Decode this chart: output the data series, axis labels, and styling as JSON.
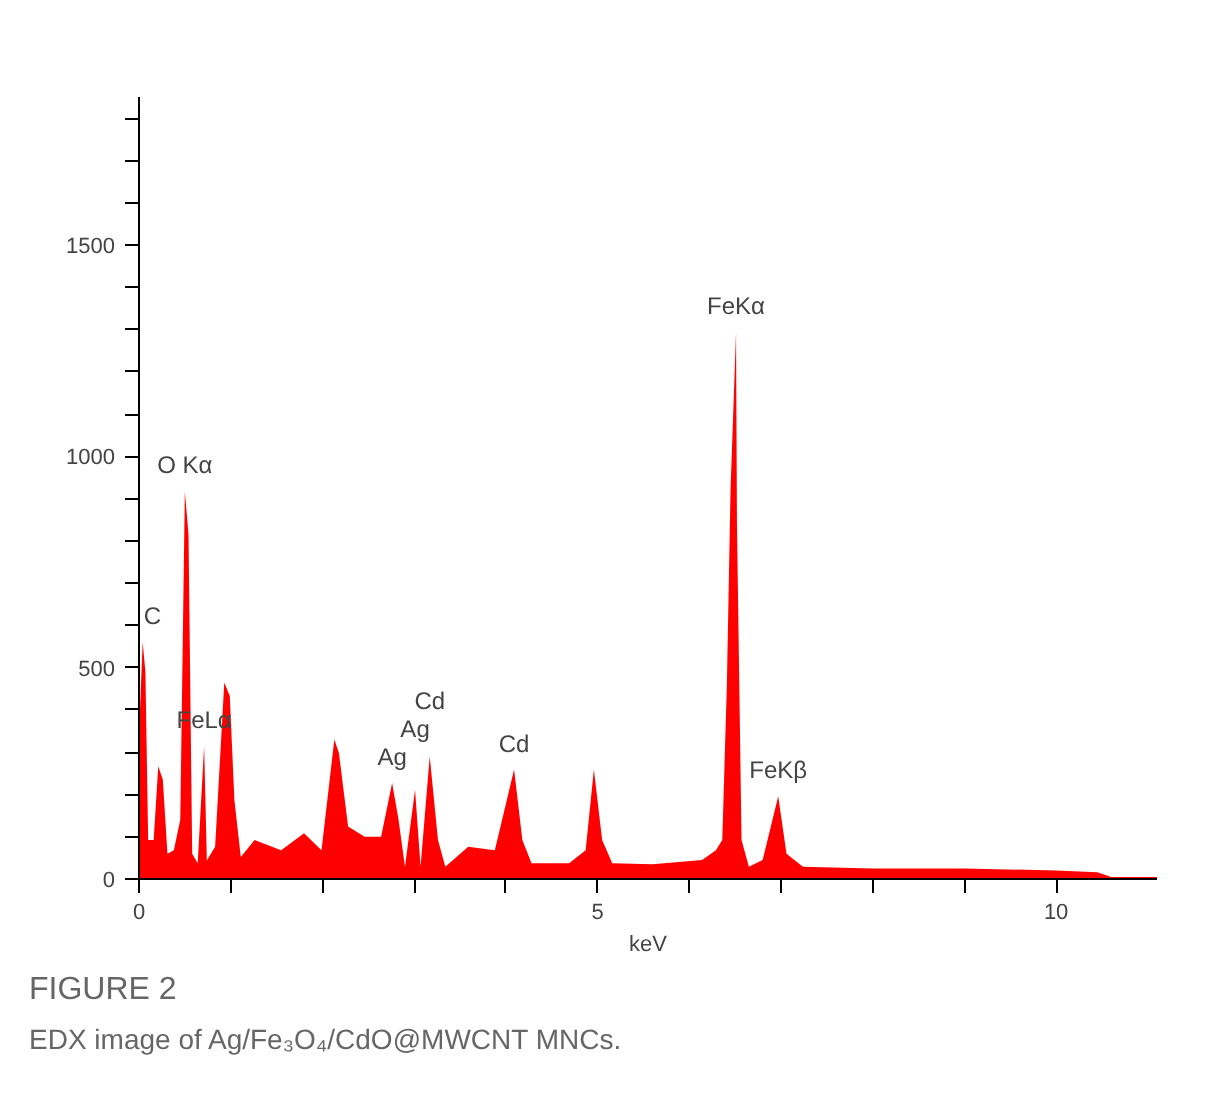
{
  "chart_data": {
    "type": "area",
    "xlabel": "keV",
    "x": [
      0.0,
      0.01,
      0.04,
      0.07,
      0.1,
      0.16,
      0.21,
      0.26,
      0.31,
      0.38,
      0.45,
      0.5,
      0.54,
      0.58,
      0.64,
      0.71,
      0.74,
      0.83,
      0.93,
      0.99,
      1.04,
      1.11,
      1.26,
      1.55,
      1.8,
      1.99,
      2.13,
      2.18,
      2.28,
      2.46,
      2.64,
      2.76,
      2.83,
      2.9,
      3.01,
      3.07,
      3.17,
      3.26,
      3.34,
      3.59,
      3.88,
      4.09,
      4.18,
      4.28,
      4.69,
      4.87,
      4.96,
      5.05,
      5.16,
      5.6,
      6.14,
      6.29,
      6.36,
      6.41,
      6.45,
      6.51,
      6.52,
      6.57,
      6.65,
      6.8,
      6.97,
      7.06,
      7.24,
      8.0,
      9.0,
      10.0,
      10.45,
      10.6,
      11.1
    ],
    "series": [
      {
        "color": "#ff0000",
        "values": [
          0,
          397,
          560,
          490,
          92,
          92,
          267,
          235,
          60,
          68,
          140,
          917,
          814,
          60,
          37,
          314,
          44,
          76,
          465,
          433,
          187,
          52,
          92,
          68,
          108,
          68,
          330,
          298,
          124,
          100,
          100,
          227,
          140,
          29,
          211,
          29,
          290,
          92,
          29,
          76,
          68,
          259,
          92,
          37,
          37,
          68,
          259,
          92,
          37,
          35,
          45,
          68,
          92,
          458,
          920,
          1293,
          840,
          92,
          29,
          45,
          196,
          60,
          29,
          25,
          25,
          20,
          16,
          5,
          5
        ]
      }
    ],
    "xlim": [
      0,
      11.1
    ],
    "ylim": [
      0,
      1850
    ],
    "xticks": [
      0,
      {
        "value": 1,
        "label": null
      },
      {
        "value": 2,
        "label": null
      },
      {
        "value": 3,
        "label": null
      },
      {
        "value": 4,
        "label": null
      },
      5,
      {
        "value": 6,
        "label": null
      },
      {
        "value": 7,
        "label": null
      },
      {
        "value": 8,
        "label": null
      },
      {
        "value": 9,
        "label": null
      },
      10
    ],
    "yticks": [
      0,
      {
        "value": 100,
        "label": null
      },
      {
        "value": 200,
        "label": null
      },
      {
        "value": 300,
        "label": null
      },
      {
        "value": 400,
        "label": null
      },
      500,
      {
        "value": 600,
        "label": null
      },
      {
        "value": 700,
        "label": null
      },
      {
        "value": 800,
        "label": null
      },
      {
        "value": 900,
        "label": null
      },
      1000,
      {
        "value": 1100,
        "label": null
      },
      {
        "value": 1200,
        "label": null
      },
      {
        "value": 1300,
        "label": null
      },
      {
        "value": 1400,
        "label": null
      },
      1500,
      {
        "value": 1600,
        "label": null
      },
      {
        "value": 1700,
        "label": null
      },
      {
        "value": 1800,
        "label": null
      }
    ],
    "grid": false,
    "annotations": [
      {
        "text": "C",
        "x": 0.04,
        "y": 560
      },
      {
        "text": "O Kα",
        "x": 0.5,
        "y": 917
      },
      {
        "text": "FeLα",
        "x": 0.71,
        "y": 314
      },
      {
        "text": "Ag",
        "x": 2.76,
        "y": 227
      },
      {
        "text": "Ag",
        "x": 3.01,
        "y": 211
      },
      {
        "text": "Cd",
        "x": 3.17,
        "y": 290
      },
      {
        "text": "Cd",
        "x": 4.09,
        "y": 259
      },
      {
        "text": "FeKα",
        "x": 6.51,
        "y": 1293
      },
      {
        "text": "FeKβ",
        "x": 6.97,
        "y": 196
      },
      "FIGURE 2",
      "EDX image of Ag/Fe₃O₄/CdO@MWCNT MNCs."
    ]
  }
}
